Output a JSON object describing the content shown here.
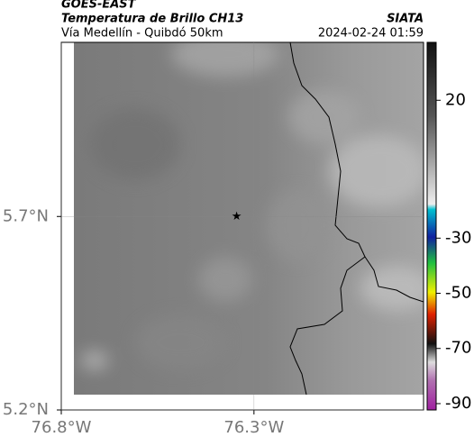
{
  "header": {
    "title": "GOES-EAST",
    "subtitle": "Temperatura de Brillo CH13",
    "route": "Vía Medellín - Quibdó 50km",
    "source": "SIATA",
    "timestamp": "2024-02-24 01:59"
  },
  "map": {
    "xlim": [
      -76.8,
      -75.86
    ],
    "ylim": [
      5.2,
      6.15
    ],
    "xticks": [
      {
        "value": -76.8,
        "label": "76.8°W"
      },
      {
        "value": -76.3,
        "label": "76.3°W"
      }
    ],
    "yticks": [
      {
        "value": 5.7,
        "label": "5.7°N"
      },
      {
        "value": 5.2,
        "label": "5.2°N"
      }
    ],
    "grid": true,
    "marker": {
      "lon": -76.345,
      "lat": 5.7
    }
  },
  "colorbar": {
    "range": [
      -92.3,
      41
    ],
    "ticks": [
      20,
      -30,
      -50,
      -70,
      -90
    ]
  }
}
